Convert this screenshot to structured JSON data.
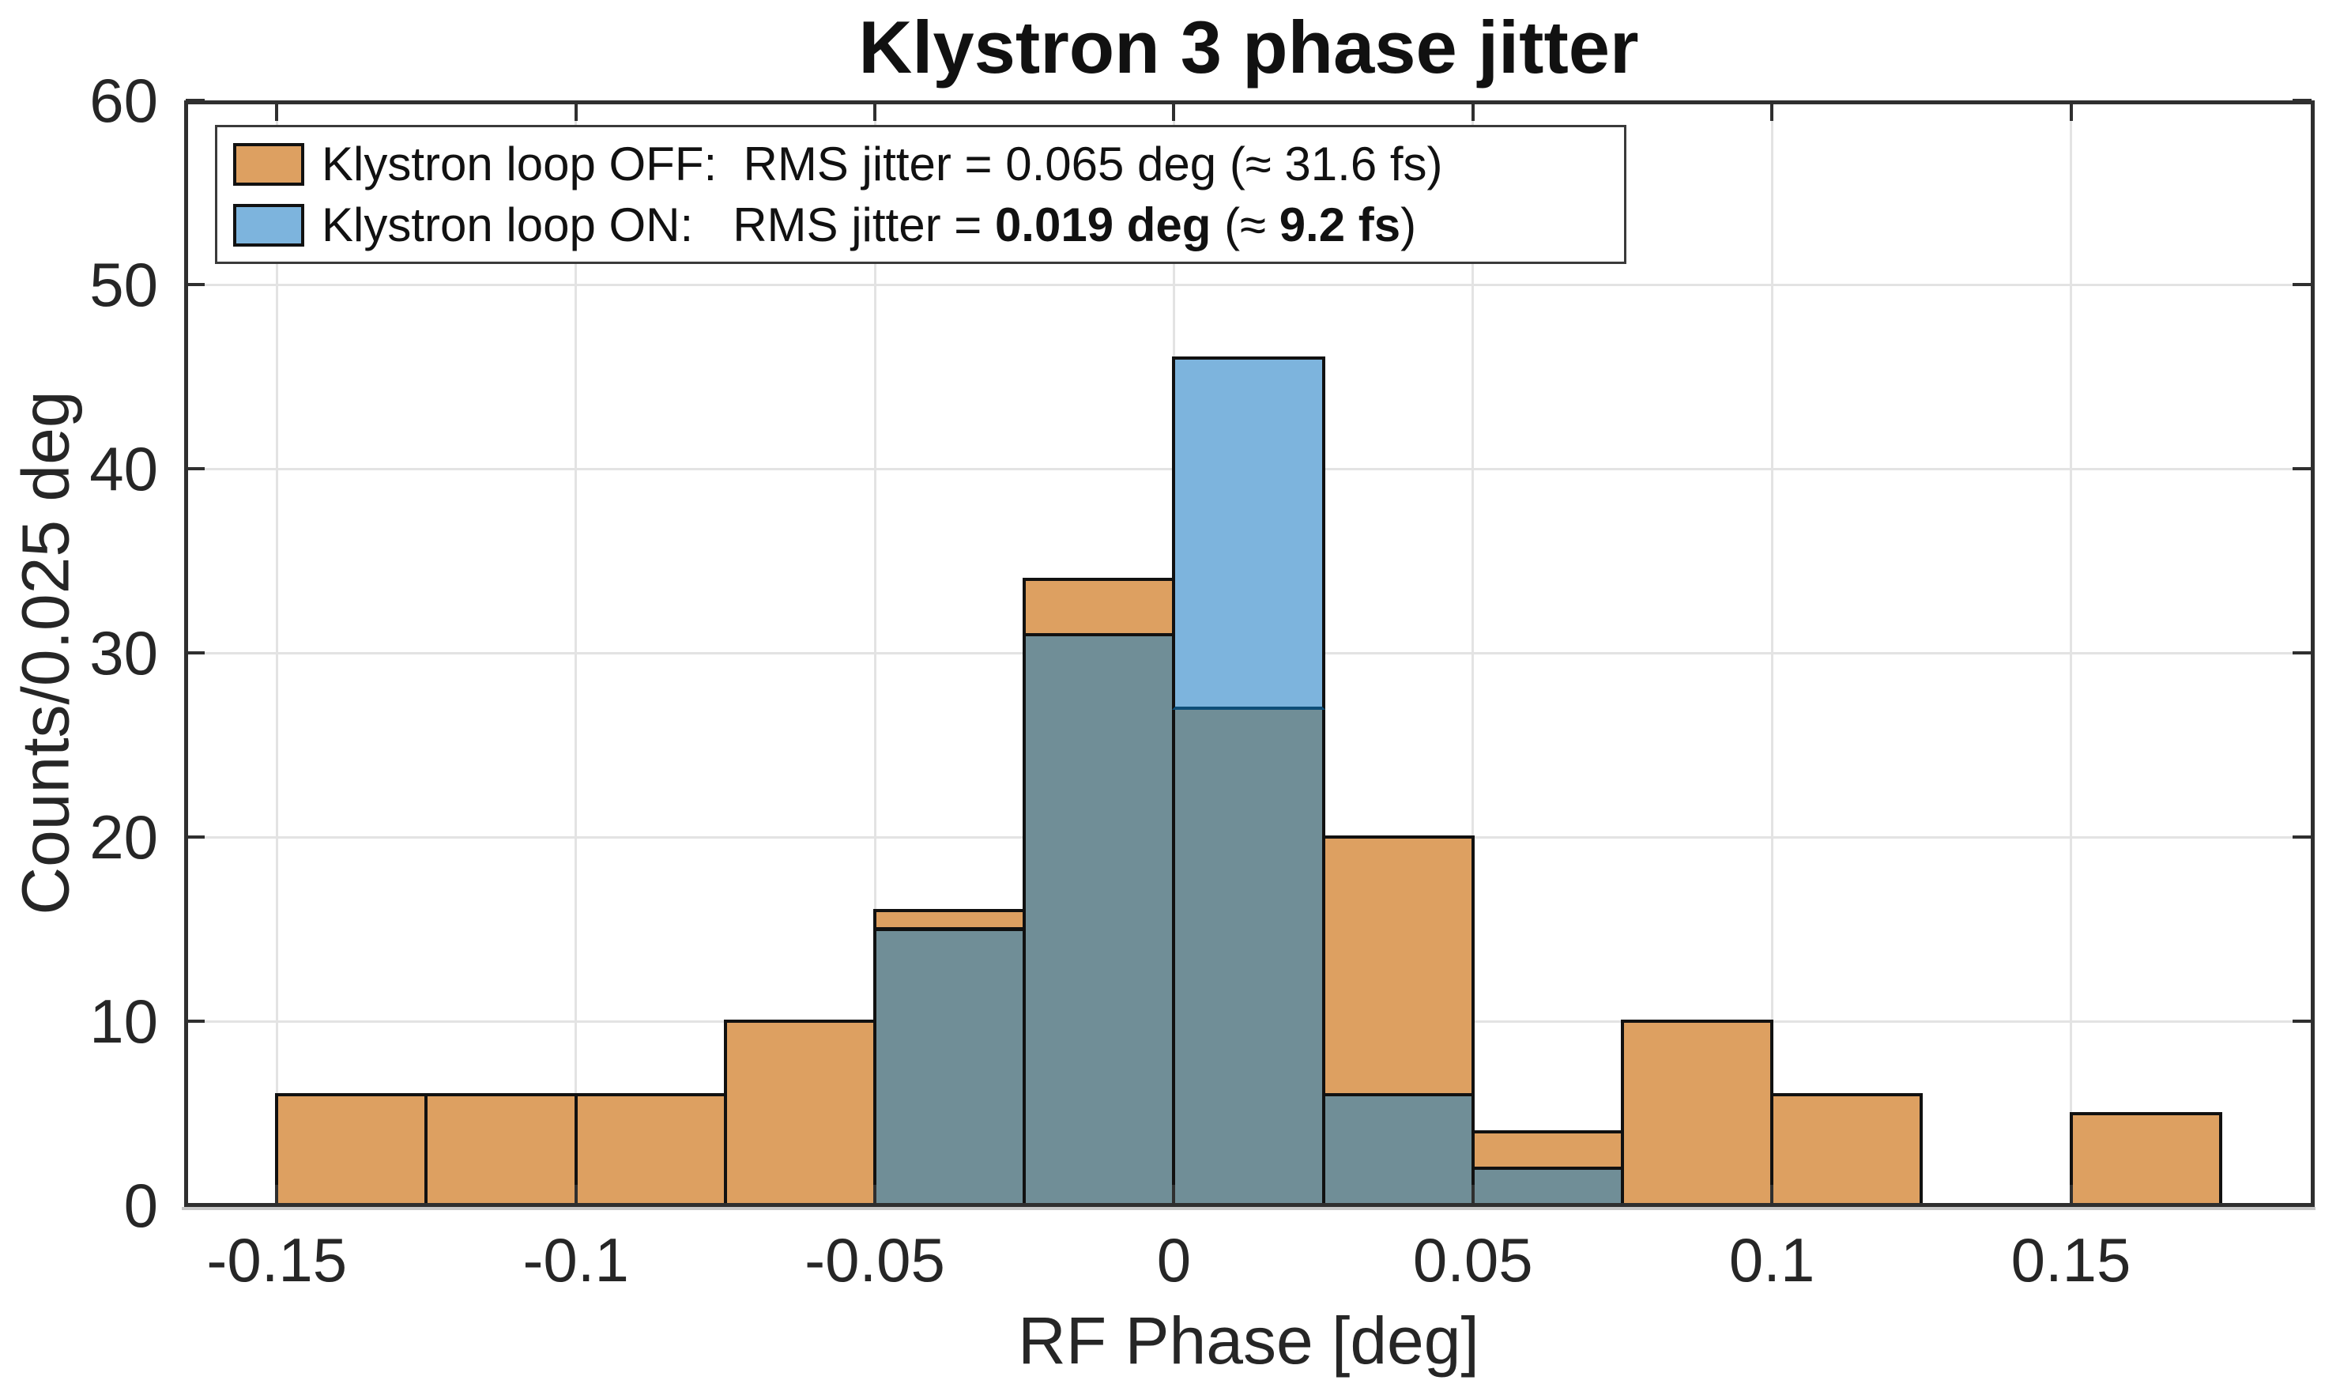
{
  "title": "Klystron 3 phase jitter",
  "axes": {
    "xlabel": "RF Phase [deg]",
    "ylabel": "Counts/0.025 deg",
    "xlim": [
      -0.1655,
      0.1905
    ],
    "ylim": [
      0,
      60
    ],
    "x_ticks": [
      {
        "value": -0.15,
        "label": "-0.15"
      },
      {
        "value": -0.1,
        "label": "-0.1"
      },
      {
        "value": -0.05,
        "label": "-0.05"
      },
      {
        "value": 0,
        "label": "0"
      },
      {
        "value": 0.05,
        "label": "0.05"
      },
      {
        "value": 0.1,
        "label": "0.1"
      },
      {
        "value": 0.15,
        "label": "0.15"
      }
    ],
    "y_ticks": [
      {
        "value": 0,
        "label": "0"
      },
      {
        "value": 10,
        "label": "10"
      },
      {
        "value": 20,
        "label": "20"
      },
      {
        "value": 30,
        "label": "30"
      },
      {
        "value": 40,
        "label": "40"
      },
      {
        "value": 50,
        "label": "50"
      },
      {
        "value": 60,
        "label": "60"
      }
    ],
    "y_grid_values": [
      10,
      20,
      30,
      40,
      50
    ]
  },
  "legend": {
    "items": [
      {
        "series": "off",
        "swatch_color": "#DDA061",
        "parts": [
          {
            "text": "Klystron loop OFF:  RMS jitter = ",
            "bold": false
          },
          {
            "text": "0.065 deg",
            "bold": false
          },
          {
            "text": " (≈ ",
            "bold": false
          },
          {
            "text": "31.6 fs",
            "bold": false
          },
          {
            "text": ")",
            "bold": false
          }
        ]
      },
      {
        "series": "on",
        "swatch_color": "#7DB4DD",
        "parts": [
          {
            "text": "Klystron loop ON:   RMS jitter = ",
            "bold": false
          },
          {
            "text": "0.019 deg",
            "bold": true
          },
          {
            "text": " (≈ ",
            "bold": false
          },
          {
            "text": "9.2 fs",
            "bold": true
          },
          {
            "text": ")",
            "bold": false
          }
        ]
      }
    ]
  },
  "chart_data": {
    "type": "histogram",
    "title": "Klystron 3 phase jitter",
    "xlabel": "RF Phase [deg]",
    "ylabel": "Counts/0.025 deg",
    "xlim": [
      -0.1655,
      0.1905
    ],
    "ylim": [
      0,
      60
    ],
    "bin_width_deg": 0.025,
    "bin_edges_deg": [
      -0.15,
      -0.125,
      -0.1,
      -0.075,
      -0.05,
      -0.025,
      0,
      0.025,
      0.05,
      0.075,
      0.1,
      0.125,
      0.15,
      0.175
    ],
    "series": [
      {
        "name": "Klystron loop OFF",
        "rms_jitter_deg": 0.065,
        "rms_jitter_fs": 31.6,
        "color": "#DDA061",
        "counts": [
          6,
          6,
          6,
          10,
          16,
          34,
          27,
          20,
          4,
          10,
          6,
          0,
          5
        ]
      },
      {
        "name": "Klystron loop ON",
        "rms_jitter_deg": 0.019,
        "rms_jitter_fs": 9.2,
        "color": "#7DB4DD",
        "counts": [
          0,
          0,
          0,
          0,
          15,
          31,
          46,
          6,
          2,
          0,
          0,
          0,
          0
        ]
      }
    ],
    "overlap_color": "#708E97",
    "grid": true,
    "legend_position": "top-left"
  },
  "colors": {
    "axis": "#2f2f2f",
    "grid": "#e3e3e3",
    "bar_edge": "#111111",
    "blue_on_orange_edge": "#0e4e78",
    "background": "#ffffff"
  }
}
